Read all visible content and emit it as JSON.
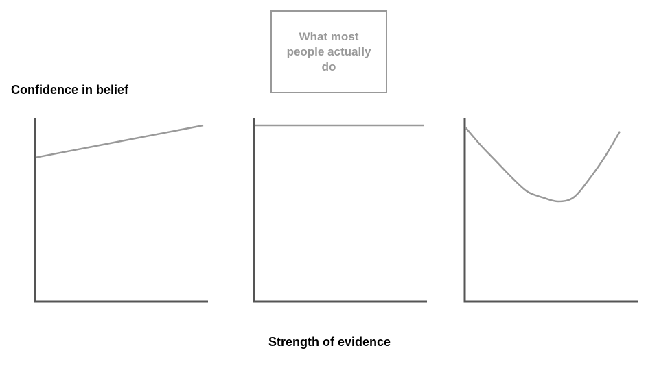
{
  "chart_data": {
    "type": "line",
    "ylabel": "Confidence in belief",
    "xlabel": "Strength of evidence",
    "annotation": "What most people actually do",
    "colors": {
      "axis": "#555555",
      "line": "#999999",
      "annotation": "#999999"
    },
    "grid": false,
    "panels": [
      {
        "x": [
          0,
          1
        ],
        "y": [
          0.72,
          0.88
        ],
        "xlim": [
          0,
          1
        ],
        "ylim": [
          0,
          1
        ]
      },
      {
        "x": [
          0,
          1
        ],
        "y": [
          0.88,
          0.88
        ],
        "xlim": [
          0,
          1
        ],
        "ylim": [
          0,
          1
        ]
      },
      {
        "x": [
          0,
          0.1,
          0.2,
          0.3,
          0.4,
          0.5,
          0.6,
          0.7,
          0.8,
          0.9,
          1.0
        ],
        "y": [
          0.87,
          0.78,
          0.7,
          0.62,
          0.55,
          0.52,
          0.5,
          0.52,
          0.61,
          0.72,
          0.85
        ],
        "xlim": [
          0,
          1
        ],
        "ylim": [
          0,
          1
        ]
      }
    ]
  }
}
